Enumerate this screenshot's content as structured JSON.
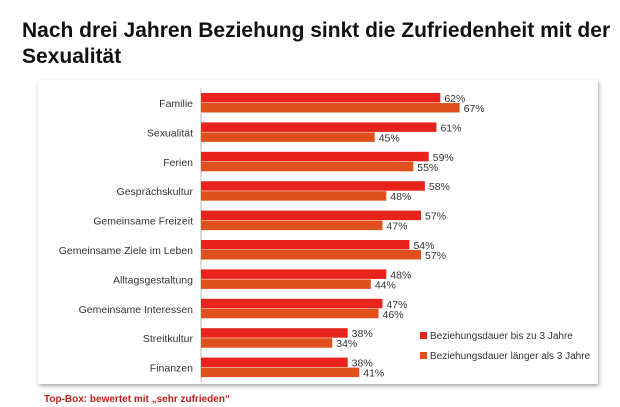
{
  "chart_data": {
    "type": "bar",
    "orientation": "horizontal",
    "title": "Nach drei Jahren Beziehung sinkt die Zufriedenheit mit der Sexualität",
    "categories": [
      "Familie",
      "Sexualität",
      "Ferien",
      "Gesprächskultur",
      "Gemeinsame Freizeit",
      "Gemeinsame Ziele im Leben",
      "Alltagsgestaltung",
      "Gemeinsame Interessen",
      "Streitkultur",
      "Finanzen"
    ],
    "series": [
      {
        "name": "Beziehungsdauer bis zu 3 Jahre",
        "color": "#e8231c",
        "values": [
          62,
          61,
          59,
          58,
          57,
          54,
          48,
          47,
          38,
          38
        ]
      },
      {
        "name": "Beziehungsdauer länger als 3 Jahre",
        "color": "#e0501c",
        "values": [
          67,
          45,
          55,
          48,
          47,
          57,
          44,
          46,
          34,
          41
        ]
      }
    ],
    "value_format": "%",
    "xlim": [
      0,
      100
    ],
    "grid": false,
    "legend_placement": "bottom-right",
    "footnote": "Top-Box: bewertet mit „sehr zufrieden“"
  }
}
